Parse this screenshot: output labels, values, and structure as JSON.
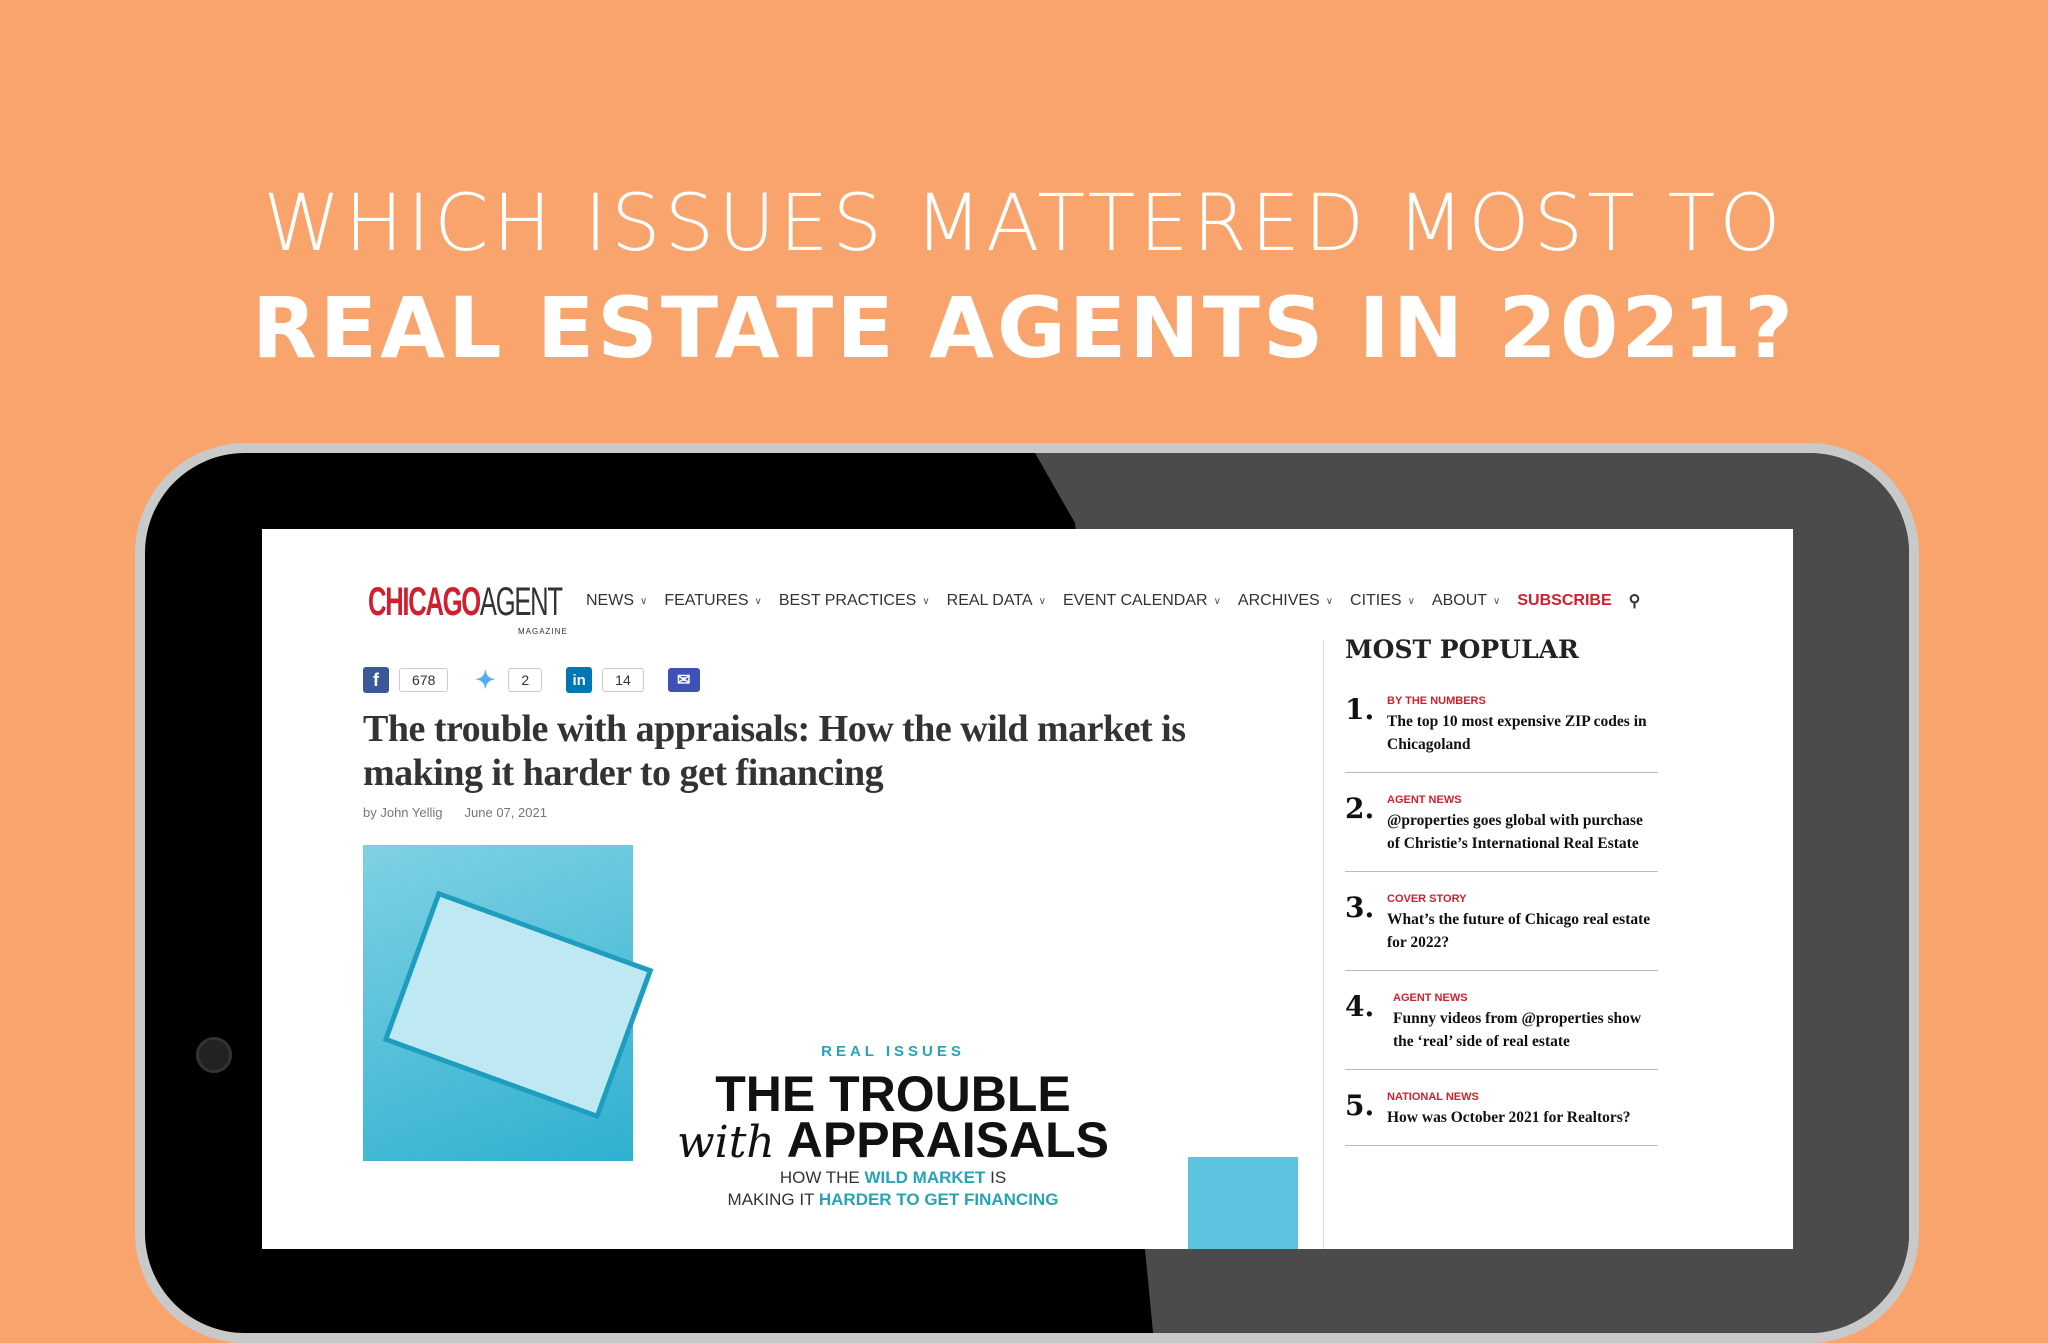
{
  "headline": {
    "line1": "WHICH ISSUES MATTERED MOST TO",
    "line2": "REAL ESTATE AGENTS IN 2021?"
  },
  "site": {
    "logo_main": "CHICAGO",
    "logo_second": "AGENT",
    "logo_sub": "MAGAZINE",
    "nav": [
      "NEWS",
      "FEATURES",
      "BEST PRACTICES",
      "REAL DATA",
      "EVENT CALENDAR",
      "ARCHIVES",
      "CITIES",
      "ABOUT"
    ],
    "subscribe": "SUBSCRIBE",
    "accent": "#d0202e"
  },
  "share": {
    "facebook": "678",
    "twitter": "2",
    "linkedin": "14"
  },
  "article": {
    "title": "The trouble with appraisals: How the wild market is making it harder to get financing",
    "author": "by John Yellig",
    "date": "June 07, 2021",
    "hero": {
      "kicker": "REAL ISSUES",
      "line1": "THE TROUBLE",
      "with": "with",
      "line2": "APPRAISALS",
      "sub1a": "HOW THE ",
      "sub1b": "WILD MARKET",
      "sub1c": " IS",
      "sub2a": "MAKING IT ",
      "sub2b": "HARDER TO GET FINANCING"
    }
  },
  "sidebar": {
    "title": "MOST POPULAR",
    "items": [
      {
        "num": "1.",
        "cat": "BY THE NUMBERS",
        "title": "The top 10 most expensive ZIP codes in Chicagoland"
      },
      {
        "num": "2.",
        "cat": "AGENT NEWS",
        "title": "@properties goes global with purchase of Christie’s International Real Estate"
      },
      {
        "num": "3.",
        "cat": "COVER STORY",
        "title": "What’s the future of Chicago real estate for 2022?"
      },
      {
        "num": "4.",
        "cat": "AGENT NEWS",
        "title": "Funny videos from @properties show the ‘real’ side of real estate"
      },
      {
        "num": "5.",
        "cat": "NATIONAL NEWS",
        "title": "How was October 2021 for Realtors?"
      }
    ]
  }
}
